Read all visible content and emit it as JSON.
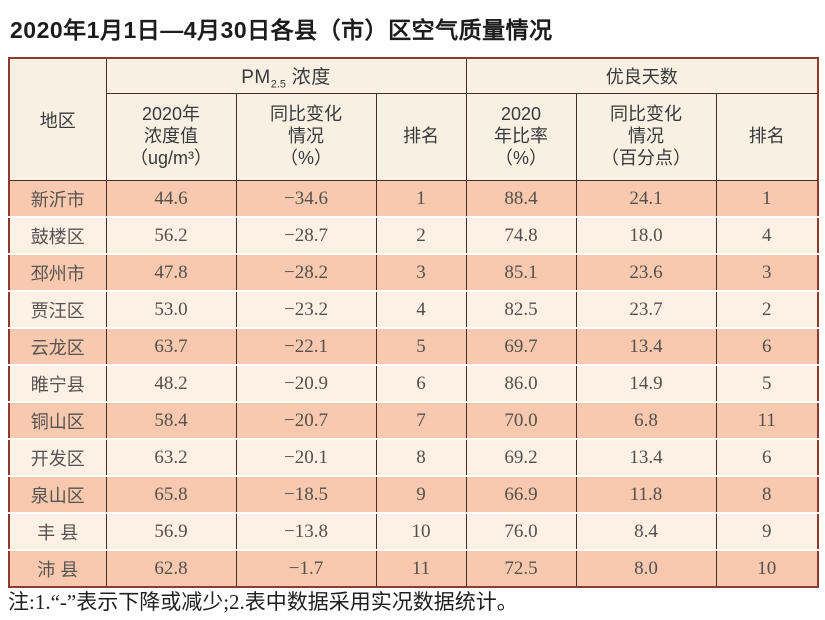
{
  "page": {
    "title": "2020年1月1日—4月30日各县（市）区空气质量情况",
    "note": "注:1.“-”表示下降或减少;2.表中数据采用实况数据统计。"
  },
  "colors": {
    "row_odd": "#f8c9ae",
    "row_even": "#fdf1e6",
    "header_bg": "#f7f0e3",
    "border_outer": "#8e3b2d",
    "grid": "#43302b"
  },
  "table": {
    "header": {
      "region": "地区",
      "pm_group": {
        "prefix": "PM",
        "sub": "2.5",
        "suffix": " 浓度"
      },
      "days_group": "优良天数",
      "pm_value": "2020年\n浓度值\n（ug/m³）",
      "pm_change": "同比变化\n情况\n（%）",
      "pm_rank": "排名",
      "days_rate": "2020\n年比率\n（%）",
      "days_change": "同比变化\n情况\n（百分点）",
      "days_rank": "排名"
    },
    "rows": [
      {
        "region": "新沂市",
        "pm_value": "44.6",
        "pm_change": "−34.6",
        "pm_rank": "1",
        "days_rate": "88.4",
        "days_change": "24.1",
        "days_rank": "1"
      },
      {
        "region": "鼓楼区",
        "pm_value": "56.2",
        "pm_change": "−28.7",
        "pm_rank": "2",
        "days_rate": "74.8",
        "days_change": "18.0",
        "days_rank": "4"
      },
      {
        "region": "邳州市",
        "pm_value": "47.8",
        "pm_change": "−28.2",
        "pm_rank": "3",
        "days_rate": "85.1",
        "days_change": "23.6",
        "days_rank": "3"
      },
      {
        "region": "贾汪区",
        "pm_value": "53.0",
        "pm_change": "−23.2",
        "pm_rank": "4",
        "days_rate": "82.5",
        "days_change": "23.7",
        "days_rank": "2"
      },
      {
        "region": "云龙区",
        "pm_value": "63.7",
        "pm_change": "−22.1",
        "pm_rank": "5",
        "days_rate": "69.7",
        "days_change": "13.4",
        "days_rank": "6"
      },
      {
        "region": "睢宁县",
        "pm_value": "48.2",
        "pm_change": "−20.9",
        "pm_rank": "6",
        "days_rate": "86.0",
        "days_change": "14.9",
        "days_rank": "5"
      },
      {
        "region": "铜山区",
        "pm_value": "58.4",
        "pm_change": "−20.7",
        "pm_rank": "7",
        "days_rate": "70.0",
        "days_change": "6.8",
        "days_rank": "11"
      },
      {
        "region": "开发区",
        "pm_value": "63.2",
        "pm_change": "−20.1",
        "pm_rank": "8",
        "days_rate": "69.2",
        "days_change": "13.4",
        "days_rank": "6"
      },
      {
        "region": "泉山区",
        "pm_value": "65.8",
        "pm_change": "−18.5",
        "pm_rank": "9",
        "days_rate": "66.9",
        "days_change": "11.8",
        "days_rank": "8"
      },
      {
        "region": "丰 县",
        "pm_value": "56.9",
        "pm_change": "−13.8",
        "pm_rank": "10",
        "days_rate": "76.0",
        "days_change": "8.4",
        "days_rank": "9"
      },
      {
        "region": "沛 县",
        "pm_value": "62.8",
        "pm_change": "−1.7",
        "pm_rank": "11",
        "days_rate": "72.5",
        "days_change": "8.0",
        "days_rank": "10"
      }
    ]
  }
}
